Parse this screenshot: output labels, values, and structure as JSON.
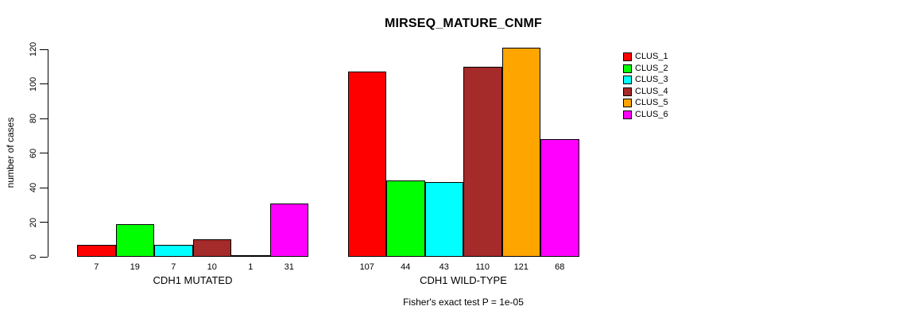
{
  "chart_data": {
    "type": "bar",
    "title": "MIRSEQ_MATURE_CNMF",
    "xlabel": "",
    "ylabel": "number of cases",
    "ylim": [
      0,
      120
    ],
    "yticks": [
      0,
      20,
      40,
      60,
      80,
      100,
      120
    ],
    "grid": false,
    "legend_position": "right-outside",
    "bar_borders": "#000000",
    "categories": [
      "CDH1 MUTATED",
      "CDH1 WILD-TYPE"
    ],
    "series": [
      {
        "name": "CLUS_1",
        "color": "#FF0000",
        "values": [
          7,
          107
        ]
      },
      {
        "name": "CLUS_2",
        "color": "#00FF00",
        "values": [
          19,
          44
        ]
      },
      {
        "name": "CLUS_3",
        "color": "#00FFFF",
        "values": [
          7,
          43
        ]
      },
      {
        "name": "CLUS_4",
        "color": "#A52A2A",
        "values": [
          10,
          110
        ]
      },
      {
        "name": "CLUS_5",
        "color": "#FFA500",
        "values": [
          1,
          121
        ]
      },
      {
        "name": "CLUS_6",
        "color": "#FF00FF",
        "values": [
          31,
          68
        ]
      }
    ],
    "bar_value_labels": {
      "CDH1 MUTATED": [
        "7",
        "19",
        "7",
        "10",
        "1",
        "31"
      ],
      "CDH1 WILD-TYPE": [
        "107",
        "44",
        "43",
        "110",
        "121",
        "68"
      ]
    },
    "annotation": "Fisher's exact test P = 1e-05"
  }
}
